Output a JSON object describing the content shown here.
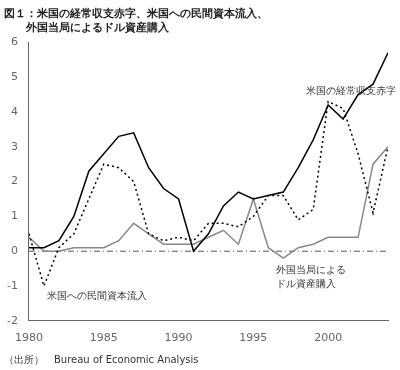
{
  "chart_data": {
    "type": "line",
    "title": [
      "図１：米国の経常収支赤字、米国への民間資本流入、",
      "　　外国当局によるドル資産購入"
    ],
    "source": "（出所）　Bureau of Economic Analysis",
    "x": [
      1980,
      1981,
      1982,
      1983,
      1984,
      1985,
      1986,
      1987,
      1988,
      1989,
      1990,
      1991,
      1992,
      1993,
      1994,
      1995,
      1996,
      1997,
      1998,
      1999,
      2000,
      2001,
      2002,
      2003,
      2004
    ],
    "series": [
      {
        "values": [
          0.1,
          0.1,
          0.3,
          1.0,
          2.3,
          2.8,
          3.3,
          3.4,
          2.4,
          1.8,
          1.5,
          0.0,
          0.5,
          1.3,
          1.7,
          1.5,
          1.6,
          1.7,
          2.4,
          3.2,
          4.2,
          3.8,
          4.5,
          4.8,
          5.7
        ],
        "color": "#000000",
        "line_style": "solid"
      },
      {
        "values": [
          0.5,
          -1.0,
          0.1,
          0.5,
          1.5,
          2.5,
          2.4,
          2.0,
          0.5,
          0.3,
          0.4,
          0.3,
          0.8,
          0.8,
          0.7,
          1.0,
          1.6,
          1.6,
          0.9,
          1.2,
          4.3,
          4.1,
          2.8,
          1.1,
          3.0
        ],
        "color": "#000000",
        "line_style": "dotted"
      },
      {
        "values": [
          0.4,
          0.0,
          0.0,
          0.1,
          0.1,
          0.1,
          0.3,
          0.8,
          0.5,
          0.2,
          0.2,
          0.2,
          0.4,
          0.6,
          0.2,
          1.5,
          0.1,
          -0.2,
          0.1,
          0.2,
          0.4,
          0.4,
          0.4,
          2.5,
          3.0
        ],
        "color": "#888888",
        "line_style": "solid"
      }
    ],
    "xlim": [
      1980,
      2004
    ],
    "xticks": [
      1980,
      1985,
      1990,
      1995,
      2000
    ],
    "ylim": [
      -2,
      6
    ],
    "yticks": [
      -2,
      -1,
      0,
      1,
      2,
      3,
      4,
      5,
      6
    ],
    "grid": false,
    "reference_lines": [
      {
        "y": 0,
        "color": "#555555",
        "line_style": "dashdot"
      }
    ],
    "annotations": [
      {
        "text": "米国の経常収支赤字",
        "x": 2002.0,
        "y": 4.8
      },
      {
        "text": "米国への民間資本流入",
        "x": 1981.2,
        "y": -1.1
      },
      {
        "text": "外国当局による",
        "x": 1996.5,
        "y": -0.35
      },
      {
        "text": "ドル資産購入",
        "x": 1996.5,
        "y": -0.75
      }
    ]
  }
}
